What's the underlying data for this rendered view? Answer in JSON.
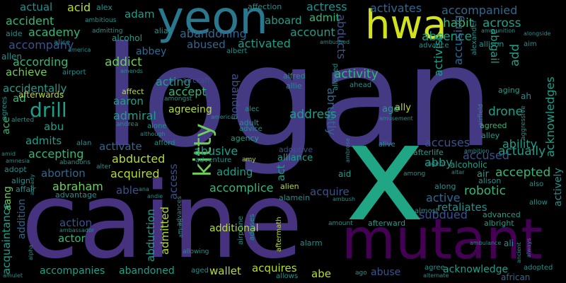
{
  "colors": {
    "background": "#000000",
    "logan": "#443983",
    "caine": "#46327e",
    "x": "#21a685",
    "mutant": "#440154",
    "yeon": "#2a788e",
    "hwa": "#d2e21b"
  },
  "words": [
    "logan",
    "caine",
    "x",
    "mutant",
    "yeon",
    "hwa",
    "kitty",
    "drill",
    "accident",
    "actual",
    "acid",
    "alex",
    "adam",
    "affection",
    "actress",
    "activates",
    "accompanied",
    "aide",
    "ambitious",
    "admitting",
    "alias",
    "alcohol",
    "aboard",
    "admit",
    "abducts",
    "habit",
    "across",
    "alexander",
    "alongside",
    "ammunition",
    "alice",
    "america",
    "academy",
    "abandoning",
    "account",
    "aim",
    "allen",
    "accompany",
    "abused",
    "activated",
    "absence",
    "allison",
    "abigail",
    "abbey",
    "albert",
    "advance",
    "ambushed",
    "according",
    "addict",
    "achieve",
    "airport",
    "abducted",
    "amends",
    "acting",
    "aircraft",
    "abandon",
    "accidentally",
    "activity",
    "actively",
    "alfred",
    "allowed",
    "acknowledges",
    "ad",
    "accept",
    "abruptly",
    "allie",
    "ahead",
    "activist",
    "accusing",
    "add",
    "afterwards",
    "affect",
    "aaron",
    "amongst",
    "ah",
    "drone",
    "agreeing",
    "alec",
    "address",
    "age",
    "airfield",
    "aging",
    "ace",
    "admiral",
    "ally",
    "aggressive",
    "agrees",
    "alerted",
    "alone",
    "andrea",
    "american",
    "advice",
    "amusement",
    "agreed",
    "alley",
    "agency",
    "adult",
    "abu",
    "although",
    "actually",
    "ability",
    "accuses",
    "accused",
    "admits",
    "alan",
    "afford",
    "activate",
    "abusive",
    "adoptive",
    "alliance",
    "alive",
    "afterlife",
    "ambition",
    "amid",
    "amnesia",
    "adventure",
    "amy",
    "abby",
    "agent",
    "alcoholic",
    "adopt",
    "abandons",
    "accepting",
    "access",
    "adding",
    "ambrose",
    "abortion",
    "acquired",
    "accepted",
    "air",
    "alter",
    "altar",
    "align",
    "abraham",
    "able",
    "accomplice",
    "aid",
    "alison",
    "also",
    "aang",
    "affair",
    "advantage",
    "already",
    "ana",
    "andie",
    "alien",
    "act",
    "robotic",
    "among",
    "along",
    "amulet",
    "acquaintance",
    "alamein",
    "acquire",
    "almost",
    "allow",
    "retaliates",
    "addition",
    "active",
    "ambush",
    "abduction",
    "admitted",
    "advances",
    "additional",
    "affirms",
    "ambassador",
    "aftermath",
    "afterward",
    "amount",
    "advanced",
    "albright",
    "action",
    "airplane",
    "advises",
    "alarm",
    "subdued",
    "ancient",
    "always",
    "allowing",
    "ali",
    "alpha",
    "actor",
    "abe",
    "alternate",
    "accompanies",
    "abandoned",
    "aged",
    "wallet",
    "acquires",
    "abuse",
    "agree",
    "acknowledge",
    "adopted",
    "allows",
    "ago",
    "ambulance",
    "african"
  ]
}
